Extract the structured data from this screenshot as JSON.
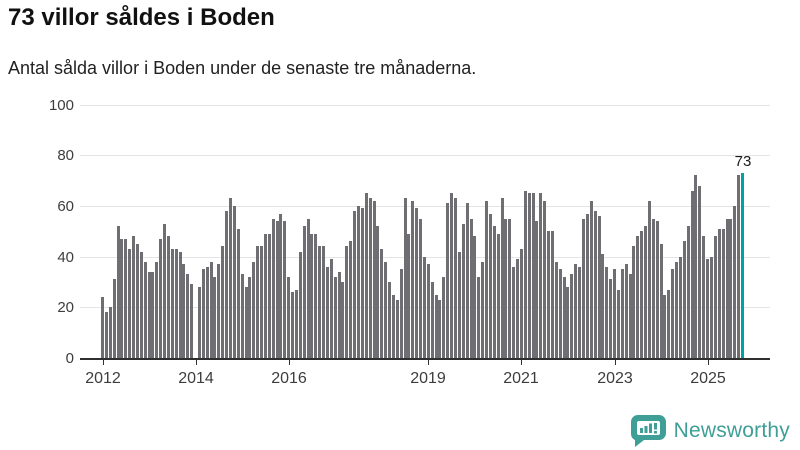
{
  "header": {
    "title": "73 villor såldes i Boden",
    "subtitle": "Antal sålda villor i Boden under de senaste tre månaderna."
  },
  "branding": {
    "logo_text": "Newsworthy",
    "logo_color": "#3f9e96"
  },
  "chart_data": {
    "type": "bar",
    "title": "73 villor såldes i Boden",
    "subtitle": "Antal sålda villor i Boden under de senaste tre månaderna.",
    "frequency": "monthly",
    "x_start": "2012-01",
    "x_end": "2025-10",
    "ylim": [
      0,
      100
    ],
    "grid": true,
    "yticks": [
      "0",
      "20",
      "40",
      "60",
      "80",
      "100"
    ],
    "xticks": [
      "2012",
      "2014",
      "2016",
      "2019",
      "2021",
      "2023",
      "2025"
    ],
    "bar_color": "#6e6e73",
    "highlight_color": "#00a3a1",
    "highlight_last": true,
    "highlight_value_label": "73",
    "values": [
      24,
      18,
      20,
      31,
      52,
      47,
      47,
      43,
      48,
      45,
      42,
      38,
      34,
      34,
      38,
      47,
      53,
      48,
      43,
      43,
      42,
      37,
      33,
      29,
      0,
      28,
      35,
      36,
      38,
      32,
      37,
      44,
      58,
      63,
      60,
      51,
      33,
      28,
      32,
      38,
      44,
      44,
      49,
      49,
      55,
      54,
      57,
      54,
      32,
      26,
      27,
      42,
      52,
      55,
      49,
      49,
      44,
      44,
      36,
      39,
      32,
      34,
      30,
      44,
      46,
      58,
      60,
      59,
      65,
      63,
      62,
      52,
      43,
      38,
      30,
      25,
      23,
      35,
      63,
      49,
      62,
      59,
      55,
      40,
      37,
      30,
      25,
      23,
      32,
      61,
      65,
      63,
      42,
      53,
      61,
      55,
      48,
      32,
      38,
      62,
      57,
      52,
      49,
      63,
      55,
      55,
      36,
      39,
      43,
      66,
      65,
      65,
      54,
      65,
      62,
      50,
      50,
      38,
      35,
      32,
      28,
      33,
      37,
      36,
      55,
      57,
      62,
      58,
      56,
      41,
      36,
      31,
      35,
      27,
      35,
      37,
      33,
      44,
      48,
      50,
      52,
      62,
      55,
      54,
      45,
      25,
      27,
      35,
      38,
      40,
      46,
      52,
      66,
      72,
      68,
      48,
      39,
      40,
      48,
      51,
      51,
      55,
      55,
      60,
      72,
      73
    ]
  }
}
